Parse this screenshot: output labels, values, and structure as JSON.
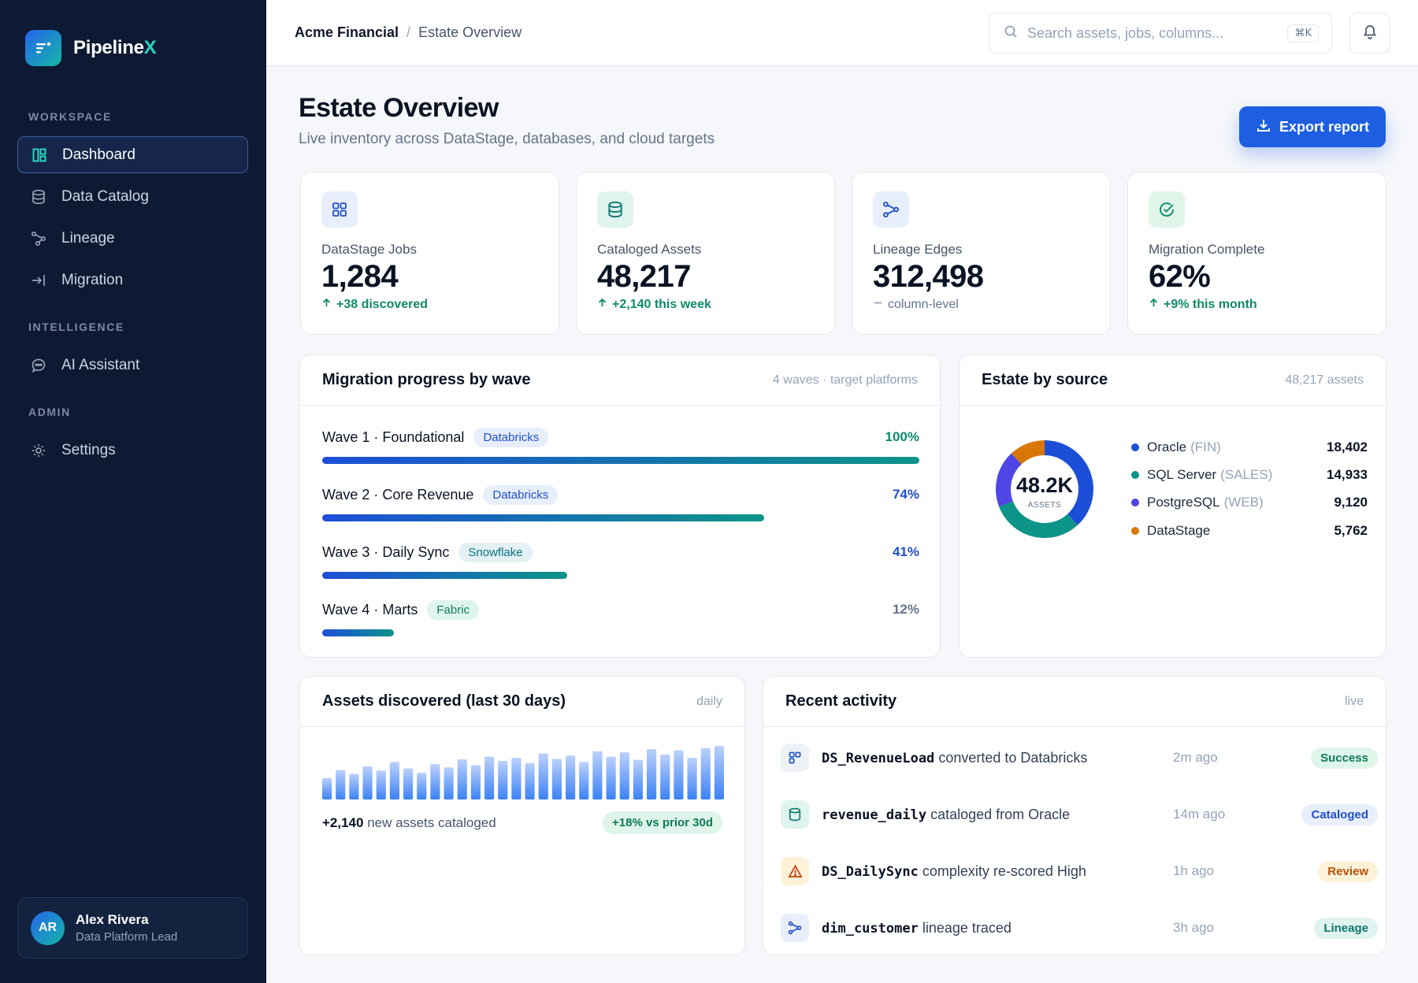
{
  "brand": {
    "name": "Pipeline",
    "accent": "X"
  },
  "sidebar": {
    "sections": [
      "WORKSPACE",
      "INTELLIGENCE",
      "ADMIN"
    ],
    "items": [
      {
        "label": "Dashboard",
        "icon": "dashboard-icon",
        "active": true
      },
      {
        "label": "Data Catalog",
        "icon": "database-icon"
      },
      {
        "label": "Lineage",
        "icon": "lineage-icon"
      },
      {
        "label": "Migration",
        "icon": "migration-icon"
      },
      {
        "label": "AI Assistant",
        "icon": "chat-icon"
      },
      {
        "label": "Settings",
        "icon": "gear-icon"
      }
    ],
    "user": {
      "initials": "AR",
      "name": "Alex Rivera",
      "role": "Data Platform Lead"
    }
  },
  "topbar": {
    "breadcrumb_root": "Acme Financial",
    "breadcrumb_sep": "/",
    "breadcrumb_current": "Estate Overview",
    "search_placeholder": "Search assets, jobs, columns...",
    "search_shortcut": "⌘K"
  },
  "header": {
    "title": "Estate Overview",
    "subtitle": "Live inventory across DataStage, databases, and cloud targets",
    "export_label": "Export report"
  },
  "stats": [
    {
      "label": "DataStage Jobs",
      "value": "1,284",
      "delta": "+38 discovered",
      "trend": "up",
      "icon": "grid-icon",
      "icon_bg": "#e8eefc",
      "icon_color": "#1f4fc9"
    },
    {
      "label": "Cataloged Assets",
      "value": "48,217",
      "delta": "+2,140 this week",
      "trend": "up",
      "icon": "database-icon",
      "icon_bg": "#dff3ef",
      "icon_color": "#0f766e"
    },
    {
      "label": "Lineage Edges",
      "value": "312,498",
      "delta": "column-level",
      "trend": "flat",
      "icon": "lineage-icon",
      "icon_bg": "#e8eefc",
      "icon_color": "#1f4fc9"
    },
    {
      "label": "Migration Complete",
      "value": "62%",
      "delta": "+9% this month",
      "trend": "up",
      "icon": "check-circle-icon",
      "icon_bg": "#dff5ea",
      "icon_color": "#0f8a68"
    }
  ],
  "waves": {
    "title": "Migration progress by wave",
    "meta": "4 waves · target platforms",
    "items": [
      {
        "name": "Wave 1 · Foundational",
        "platform": "Databricks",
        "tag": "databricks",
        "pct_label": "100%",
        "progress": 1.0,
        "pct_color": "#0f8a68"
      },
      {
        "name": "Wave 2 · Core Revenue",
        "platform": "Databricks",
        "tag": "databricks",
        "pct_label": "74%",
        "progress": 0.74,
        "pct_color": "#1f4fc9"
      },
      {
        "name": "Wave 3 · Daily Sync",
        "platform": "Snowflake",
        "tag": "snowflake",
        "pct_label": "41%",
        "progress": 0.41,
        "pct_color": "#1f4fc9"
      },
      {
        "name": "Wave 4 · Marts",
        "platform": "Fabric",
        "tag": "fabric",
        "pct_label": "12%",
        "progress": 0.12,
        "pct_color": "#64748b"
      }
    ]
  },
  "source": {
    "title": "Estate by source",
    "meta": "48,217 assets",
    "center_value": "48.2K",
    "center_label": "ASSETS",
    "items": [
      {
        "name": "Oracle",
        "env": "(FIN)",
        "value": "18,402",
        "color": "#1d4ed8"
      },
      {
        "name": "SQL Server",
        "env": "(SALES)",
        "value": "14,933",
        "color": "#0d9488"
      },
      {
        "name": "PostgreSQL",
        "env": "(WEB)",
        "value": "9,120",
        "color": "#4f46e5"
      },
      {
        "name": "DataStage",
        "env": "",
        "value": "5,762",
        "color": "#d97706"
      }
    ]
  },
  "discovered": {
    "title": "Assets discovered (last 30 days)",
    "meta": "daily",
    "total": "+2,140",
    "total_suffix": "new assets cataloged",
    "change": "+18% vs prior 30d"
  },
  "chart_data": {
    "type": "bar",
    "title": "Assets discovered (last 30 days)",
    "values": [
      40,
      55,
      48,
      62,
      54,
      70,
      58,
      50,
      66,
      60,
      75,
      64,
      80,
      72,
      78,
      68,
      86,
      76,
      82,
      70,
      90,
      80,
      88,
      74,
      94,
      84,
      92,
      78,
      96,
      100
    ]
  },
  "activity": {
    "title": "Recent activity",
    "meta": "live",
    "items": [
      {
        "code": "DS_RevenueLoad",
        "text": "converted to Databricks",
        "time": "2m ago",
        "status": "Success",
        "icon": "grid-icon",
        "icon_bg": "#eef2f7",
        "icon_color": "#1f4fc9",
        "badge_bg": "#dff5ea",
        "badge_color": "#0f7a5a"
      },
      {
        "code": "revenue_daily",
        "text": "cataloged from Oracle",
        "time": "14m ago",
        "status": "Cataloged",
        "icon": "database-icon",
        "icon_bg": "#dff3ef",
        "icon_color": "#0f766e",
        "badge_bg": "#e8eefc",
        "badge_color": "#1f4fc9"
      },
      {
        "code": "DS_DailySync",
        "text": "complexity re-scored High",
        "time": "1h ago",
        "status": "Review",
        "icon": "warning-icon",
        "icon_bg": "#fdf1d8",
        "icon_color": "#c2410c",
        "badge_bg": "#fdf1d8",
        "badge_color": "#b45309"
      },
      {
        "code": "dim_customer",
        "text": "lineage traced",
        "time": "3h ago",
        "status": "Lineage",
        "icon": "lineage-icon",
        "icon_bg": "#e8eefc",
        "icon_color": "#1f4fc9",
        "badge_bg": "#dff3ef",
        "badge_color": "#0f766e"
      }
    ]
  }
}
